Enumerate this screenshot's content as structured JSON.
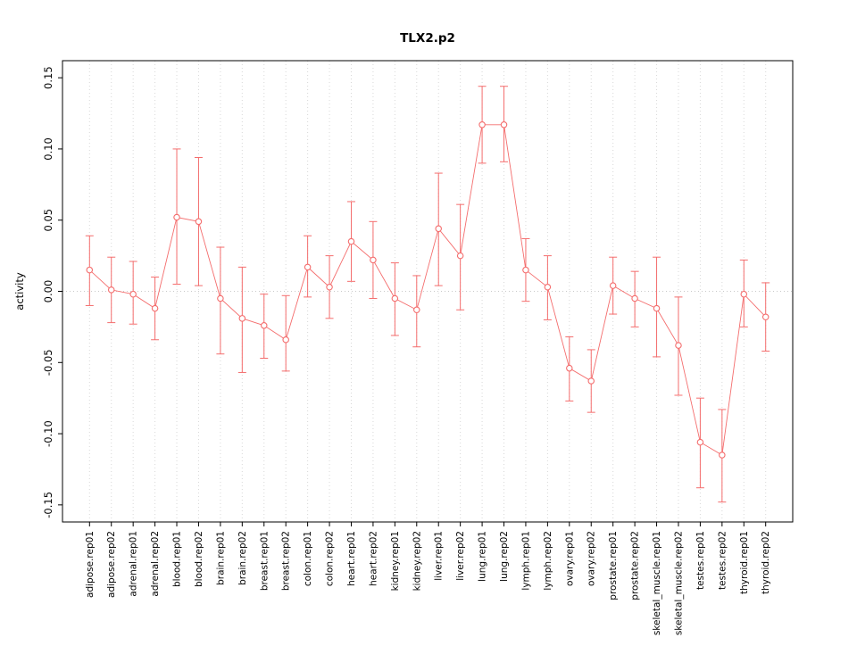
{
  "chart_data": {
    "type": "line",
    "title": "TLX2.p2",
    "xlabel": "",
    "ylabel": "activity",
    "ylim": [
      -0.15,
      0.15
    ],
    "yticks": [
      -0.15,
      -0.1,
      -0.05,
      0.0,
      0.05,
      0.1,
      0.15
    ],
    "grid": "vertical dotted gridline per category; dotted horizontal line at y=0",
    "legend": "none",
    "categories": [
      "adipose.rep01",
      "adipose.rep02",
      "adrenal.rep01",
      "adrenal.rep02",
      "blood.rep01",
      "blood.rep02",
      "brain.rep01",
      "brain.rep02",
      "breast.rep01",
      "breast.rep02",
      "colon.rep01",
      "colon.rep02",
      "heart.rep01",
      "heart.rep02",
      "kidney.rep01",
      "kidney.rep02",
      "liver.rep01",
      "liver.rep02",
      "lung.rep01",
      "lung.rep02",
      "lymph.rep01",
      "lymph.rep02",
      "ovary.rep01",
      "ovary.rep02",
      "prostate.rep01",
      "prostate.rep02",
      "skeletal_muscle.rep01",
      "skeletal_muscle.rep02",
      "testes.rep01",
      "testes.rep02",
      "thyroid.rep01",
      "thyroid.rep02"
    ],
    "series": [
      {
        "name": "activity",
        "values": [
          0.015,
          0.001,
          -0.002,
          -0.012,
          0.052,
          0.049,
          -0.005,
          -0.019,
          -0.024,
          -0.034,
          0.017,
          0.003,
          0.035,
          0.022,
          -0.005,
          -0.013,
          0.044,
          0.025,
          0.117,
          0.117,
          0.015,
          0.003,
          -0.054,
          -0.063,
          0.004,
          -0.005,
          -0.012,
          -0.038,
          -0.106,
          -0.115,
          -0.002,
          -0.018
        ],
        "lower": [
          -0.01,
          -0.022,
          -0.023,
          -0.034,
          0.005,
          0.004,
          -0.044,
          -0.057,
          -0.047,
          -0.056,
          -0.004,
          -0.019,
          0.007,
          -0.005,
          -0.031,
          -0.039,
          0.004,
          -0.013,
          0.09,
          0.091,
          -0.007,
          -0.02,
          -0.077,
          -0.085,
          -0.016,
          -0.025,
          -0.046,
          -0.073,
          -0.138,
          -0.148,
          -0.025,
          -0.042
        ],
        "upper": [
          0.039,
          0.024,
          0.021,
          0.01,
          0.1,
          0.094,
          0.031,
          0.017,
          -0.002,
          -0.003,
          0.039,
          0.025,
          0.063,
          0.049,
          0.02,
          0.011,
          0.083,
          0.061,
          0.144,
          0.144,
          0.037,
          0.025,
          -0.032,
          -0.041,
          0.024,
          0.014,
          0.024,
          -0.004,
          -0.075,
          -0.083,
          0.022,
          0.006
        ]
      }
    ],
    "colors": {
      "series": "#f46d6d",
      "grid": "#d8d8d8",
      "zero_line": "#c9c9c9",
      "axis": "#000000",
      "point_fill": "#ffffff"
    }
  }
}
